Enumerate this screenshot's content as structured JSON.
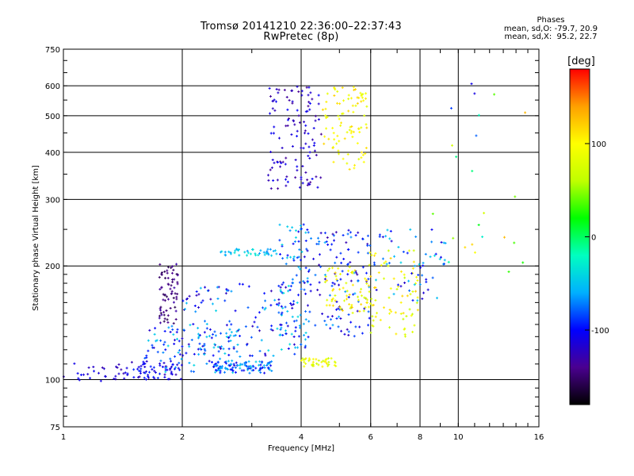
{
  "header": {
    "title": "Tromsø 20141210 22:36:00–22:37:43",
    "subtitle": "RwPretec (8p)",
    "stats_heading": "Phases",
    "stats_line1": "mean, sd,O: -79.7, 20.9",
    "stats_line2": "mean, sd,X:  95.2, 22.7"
  },
  "colorbar": {
    "label": "[deg]",
    "ticks": [
      {
        "value": 100,
        "label": "100"
      },
      {
        "value": 0,
        "label": "0"
      },
      {
        "value": -100,
        "label": "-100"
      }
    ],
    "range": [
      -180,
      180
    ],
    "colormap": [
      "#000000",
      "#4a0090",
      "#0000ff",
      "#00b0ff",
      "#00ffc0",
      "#00ff00",
      "#c0ff00",
      "#ffff00",
      "#ffa000",
      "#ff0000"
    ]
  },
  "chart_data": {
    "type": "scatter",
    "title": "Tromsø 20141210 22:36:00–22:37:43",
    "subtitle": "RwPretec (8p)",
    "xlabel": "Frequency [MHz]",
    "ylabel": "Stationary phase Virtual Height [km]",
    "xscale": "log",
    "yscale": "log",
    "xlim": [
      1,
      16
    ],
    "ylim": [
      75,
      750
    ],
    "xticks": [
      {
        "value": 1,
        "label": "1"
      },
      {
        "value": 2,
        "label": "2"
      },
      {
        "value": 4,
        "label": "4"
      },
      {
        "value": 6,
        "label": "6"
      },
      {
        "value": 8,
        "label": "8"
      },
      {
        "value": 10,
        "label": "10"
      },
      {
        "value": 16,
        "label": "16"
      }
    ],
    "yticks": [
      {
        "value": 75,
        "label": "75"
      },
      {
        "value": 100,
        "label": "100"
      },
      {
        "value": 200,
        "label": "200"
      },
      {
        "value": 300,
        "label": "300"
      },
      {
        "value": 400,
        "label": "400"
      },
      {
        "value": 500,
        "label": "500"
      },
      {
        "value": 600,
        "label": "600"
      },
      {
        "value": 750,
        "label": "750"
      }
    ],
    "grid": true,
    "color_variable": "phase [deg]",
    "clusters": [
      {
        "freq": [
          1.0,
          1.45
        ],
        "height": [
          98,
          112
        ],
        "phase": [
          -130,
          -100
        ],
        "n": 30
      },
      {
        "freq": [
          1.45,
          2.0
        ],
        "height": [
          100,
          112
        ],
        "phase": [
          -130,
          -90
        ],
        "n": 60
      },
      {
        "freq": [
          1.75,
          1.95
        ],
        "height": [
          140,
          205
        ],
        "phase": [
          -160,
          -130
        ],
        "n": 70
      },
      {
        "freq": [
          1.6,
          2.8
        ],
        "height": [
          104,
          140
        ],
        "phase": [
          -120,
          -40
        ],
        "n": 120
      },
      {
        "freq": [
          2.4,
          3.4
        ],
        "height": [
          104,
          112
        ],
        "phase": [
          -110,
          -40
        ],
        "n": 90
      },
      {
        "freq": [
          2.5,
          3.5
        ],
        "height": [
          213,
          222
        ],
        "phase": [
          -70,
          -30
        ],
        "n": 40
      },
      {
        "freq": [
          2.0,
          4.0
        ],
        "height": [
          115,
          180
        ],
        "phase": [
          -130,
          -40
        ],
        "n": 120
      },
      {
        "freq": [
          3.5,
          4.2
        ],
        "height": [
          120,
          260
        ],
        "phase": [
          -120,
          -30
        ],
        "n": 110
      },
      {
        "freq": [
          3.3,
          4.5
        ],
        "height": [
          320,
          600
        ],
        "phase": [
          -140,
          -100
        ],
        "n": 120
      },
      {
        "freq": [
          4.0,
          4.9
        ],
        "height": [
          108,
          114
        ],
        "phase": [
          60,
          110
        ],
        "n": 40
      },
      {
        "freq": [
          4.5,
          5.9
        ],
        "height": [
          360,
          600
        ],
        "phase": [
          80,
          120
        ],
        "n": 90
      },
      {
        "freq": [
          4.2,
          6.0
        ],
        "height": [
          130,
          250
        ],
        "phase": [
          -130,
          -60
        ],
        "n": 120
      },
      {
        "freq": [
          4.6,
          6.0
        ],
        "height": [
          150,
          200
        ],
        "phase": [
          70,
          120
        ],
        "n": 60
      },
      {
        "freq": [
          5.8,
          8.0
        ],
        "height": [
          130,
          220
        ],
        "phase": [
          60,
          120
        ],
        "n": 80
      },
      {
        "freq": [
          6.0,
          9.3
        ],
        "height": [
          160,
          250
        ],
        "phase": [
          -120,
          -40
        ],
        "n": 60
      },
      {
        "freq": [
          8.5,
          15.0
        ],
        "height": [
          190,
          620
        ],
        "phase": [
          -120,
          140
        ],
        "n": 25
      }
    ]
  }
}
